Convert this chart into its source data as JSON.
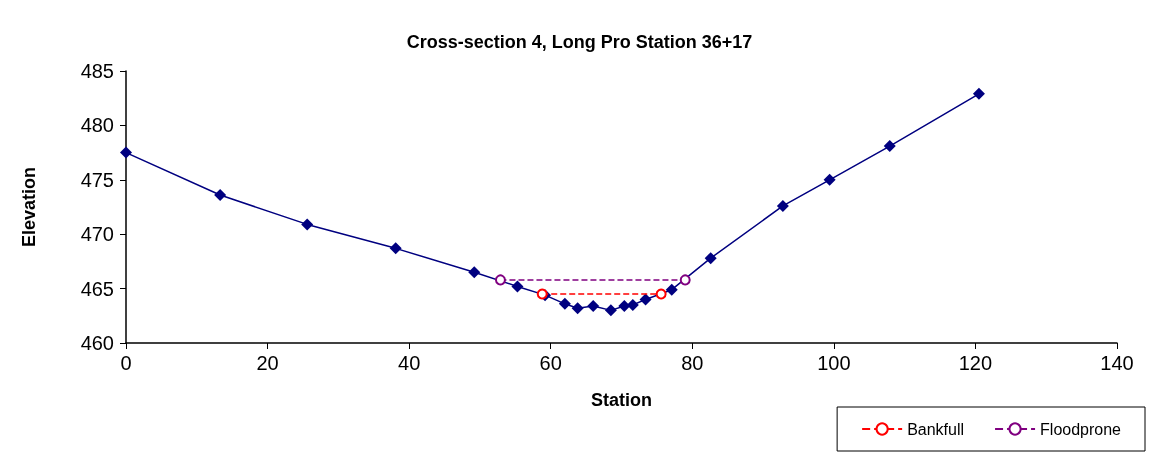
{
  "chart_data": {
    "type": "line",
    "title": "Cross-section 4, Long Pro Station 36+17",
    "xlabel": "Station",
    "ylabel": "Elevation",
    "xlim": [
      0,
      140
    ],
    "xticks": [
      0,
      20,
      40,
      60,
      80,
      100,
      120,
      140
    ],
    "ylim": [
      460,
      485
    ],
    "yticks": [
      460,
      465,
      470,
      475,
      480,
      485
    ],
    "grid": false,
    "legend": "bottom right",
    "series": [
      {
        "color": "#000080",
        "marker": "diamond",
        "line_style": "solid",
        "x": [
          0,
          13.3,
          25.6,
          38.1,
          49.2,
          55.3,
          59.2,
          62.0,
          63.8,
          66.0,
          68.5,
          70.4,
          71.6,
          73.4,
          77.1,
          82.6,
          92.8,
          99.4,
          107.9,
          120.5
        ],
        "values": [
          477.5,
          473.6,
          470.9,
          468.7,
          466.5,
          465.2,
          464.4,
          463.6,
          463.2,
          463.4,
          463.0,
          463.4,
          463.5,
          464.0,
          464.9,
          467.8,
          472.6,
          475.0,
          478.1,
          482.9
        ]
      },
      {
        "name": "Bankfull",
        "color": "#ff0000",
        "marker": "circle",
        "line_style": "dashed",
        "x": [
          58.8,
          75.6
        ],
        "values": [
          464.5,
          464.5
        ]
      },
      {
        "name": "Floodprone",
        "color": "#800080",
        "marker": "circle",
        "line_style": "dashed",
        "x": [
          52.9,
          79.0
        ],
        "values": [
          465.8,
          465.8
        ]
      }
    ]
  }
}
